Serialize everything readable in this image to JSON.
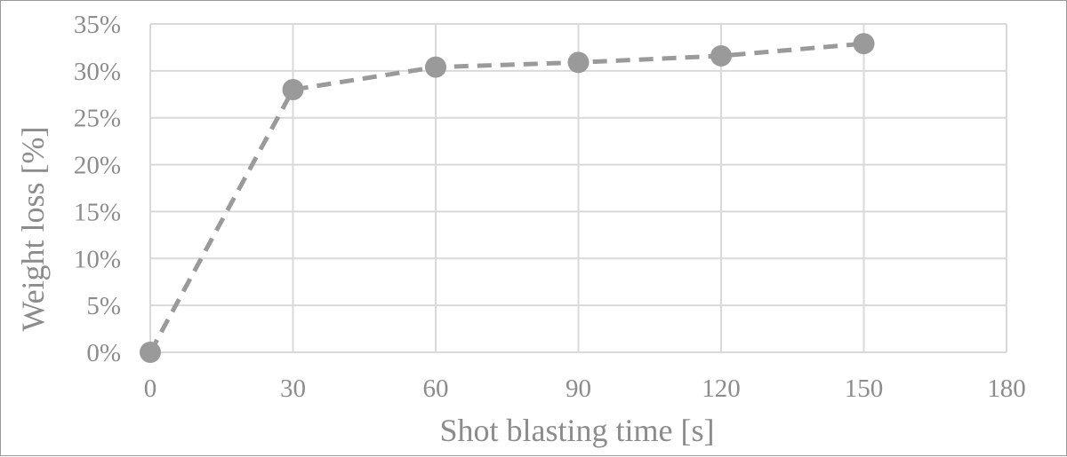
{
  "chart_data": {
    "type": "line",
    "title": "",
    "xlabel": "Shot blasting time [s]",
    "ylabel": "Weight loss [%]",
    "x": [
      0,
      30,
      60,
      90,
      120,
      150
    ],
    "series": [
      {
        "values": [
          0.0,
          28.0,
          30.4,
          30.9,
          31.6,
          32.9
        ]
      }
    ],
    "xlim": [
      0,
      180
    ],
    "ylim": [
      0,
      35
    ],
    "xticks": [
      "0",
      "30",
      "60",
      "90",
      "120",
      "150",
      "180"
    ],
    "yticks": [
      "0%",
      "5%",
      "10%",
      "15%",
      "20%",
      "25%",
      "30%",
      "35%"
    ],
    "grid": true,
    "legend": "none",
    "colors": {
      "series": "#9a9a9a",
      "grid": "#d9d9d9",
      "text": "#8c8c8c"
    }
  }
}
